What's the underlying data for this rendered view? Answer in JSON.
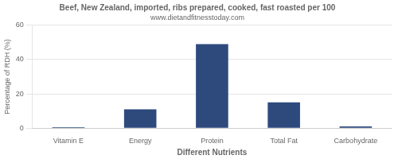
{
  "chart_data": {
    "type": "bar",
    "title": "Beef, New Zealand, imported, ribs prepared, cooked, fast roasted per 100",
    "subtitle": "www.dietandfitnesstoday.com",
    "categories": [
      "Vitamin E",
      "Energy",
      "Protein",
      "Total Fat",
      "Carbohydrate"
    ],
    "values": [
      0.5,
      11,
      49,
      15,
      1
    ],
    "color": "#2e4a7d",
    "xlabel": "Different Nutrients",
    "ylabel": "Percentage of RDH (%)",
    "ylim": [
      0,
      60
    ],
    "yticks": [
      0,
      20,
      40,
      60
    ],
    "grid": true
  }
}
